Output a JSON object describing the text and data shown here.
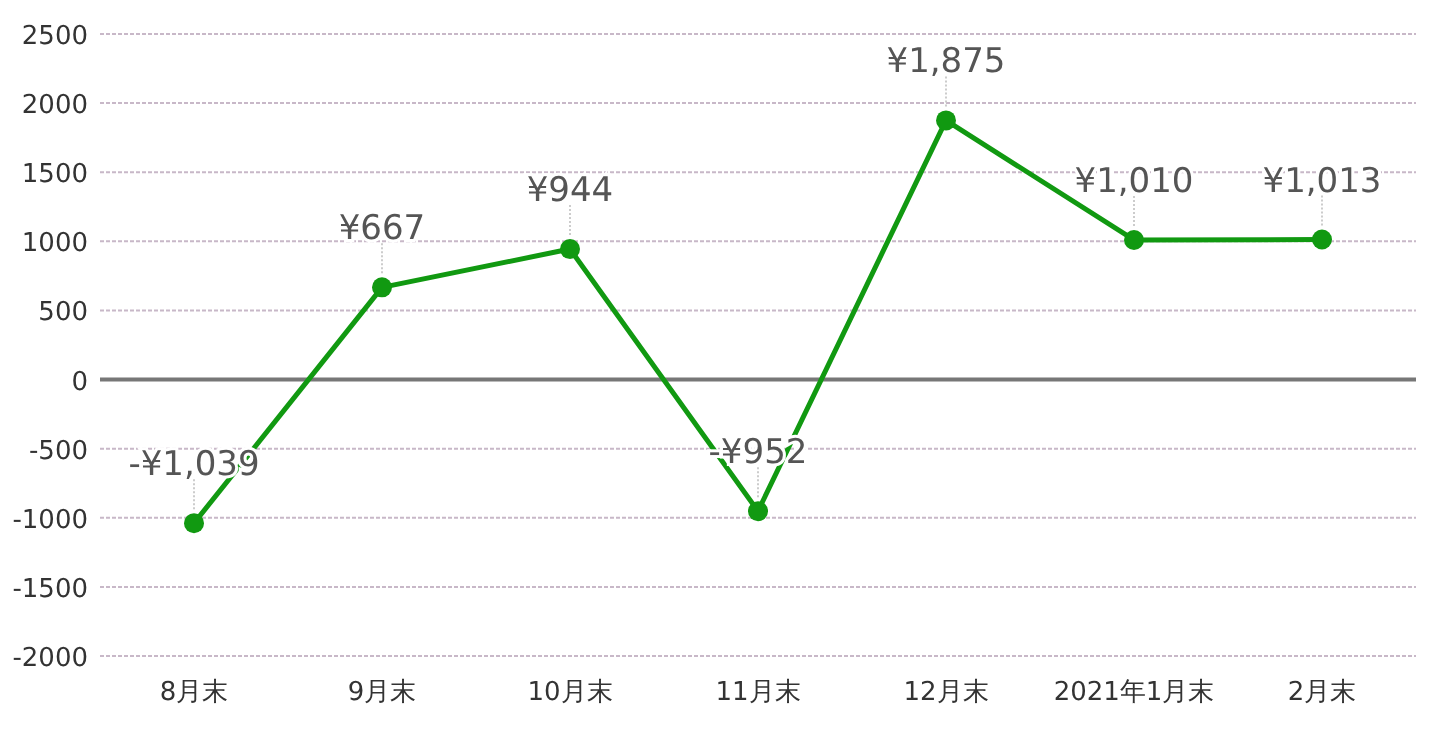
{
  "chart_data": {
    "type": "line",
    "categories": [
      "8月末",
      "9月末",
      "10月末",
      "11月末",
      "12月末",
      "2021年1月末",
      "2月末"
    ],
    "series": [
      {
        "color": "#119911",
        "values": [
          -1039,
          667,
          944,
          -952,
          1875,
          1010,
          1013
        ],
        "value_labels": [
          "-¥1,039",
          "¥667",
          "¥944",
          "-¥952",
          "¥1,875",
          "¥1,010",
          "¥1,013"
        ]
      }
    ],
    "ylim": [
      -2000,
      2500
    ],
    "yticks": [
      -2000,
      -1500,
      -1000,
      -500,
      0,
      500,
      1000,
      1500,
      2000,
      2500
    ],
    "grid": "y",
    "marker": "circle",
    "line_style": "solid"
  }
}
